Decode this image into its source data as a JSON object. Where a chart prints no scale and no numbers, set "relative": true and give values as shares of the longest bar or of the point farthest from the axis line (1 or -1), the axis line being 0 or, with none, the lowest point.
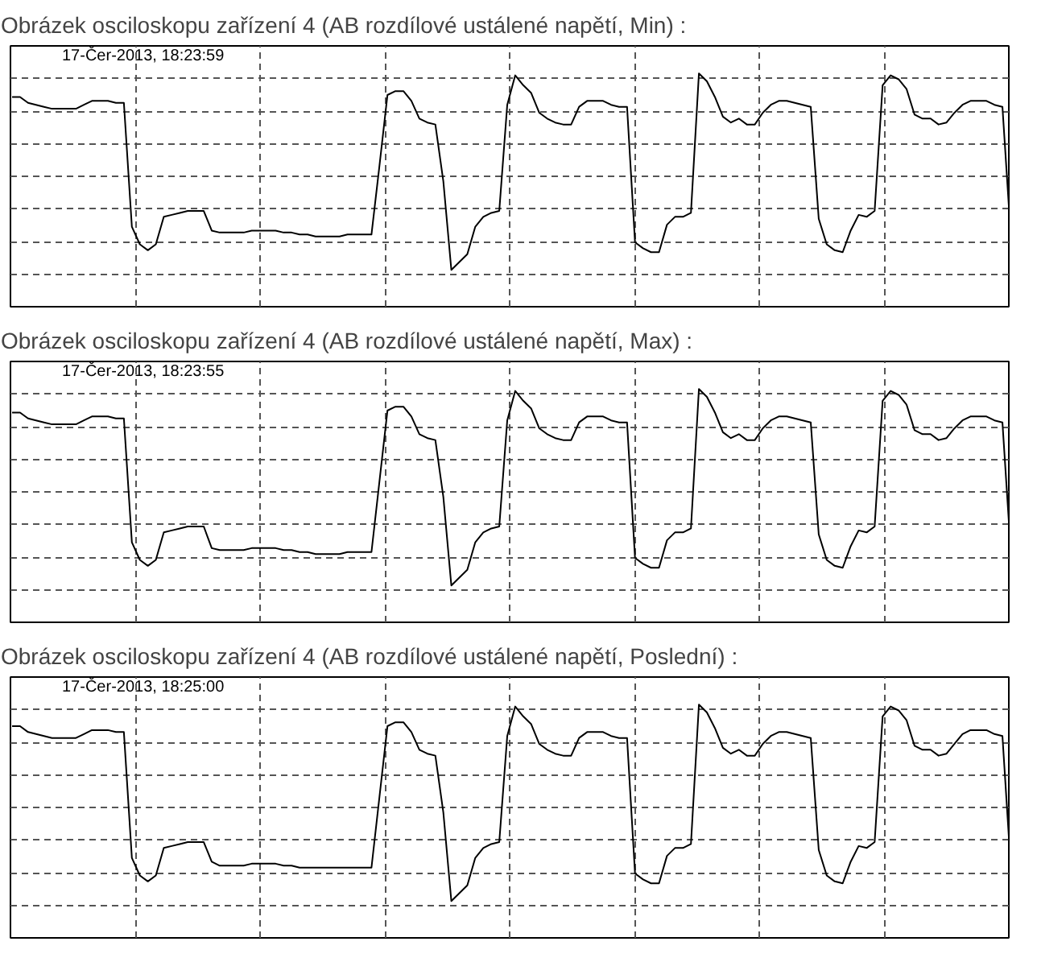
{
  "chart_data": [
    {
      "type": "line",
      "title": "Obrázek osciloskopu zařízení 4 (AB rozdílové ustálené napětí, Min) :",
      "annotations": [
        "17-Čer-2013, 18:23:59"
      ],
      "relative": true,
      "grid": true,
      "categories": [
        null,
        null,
        null,
        null,
        null,
        null,
        null,
        null,
        null,
        null,
        null,
        null,
        null,
        null,
        null,
        null,
        null,
        null,
        null,
        null,
        null,
        null,
        null,
        null,
        null,
        null,
        null,
        null,
        null,
        null,
        null,
        null,
        null,
        null,
        null,
        null,
        null,
        null,
        null,
        null,
        null,
        null,
        null,
        null,
        null,
        null,
        null,
        null,
        null,
        null,
        null,
        null,
        null,
        null,
        null,
        null,
        null,
        null,
        null,
        null,
        null,
        null,
        null,
        null,
        null,
        null,
        null,
        null,
        null,
        null,
        null,
        null,
        null,
        null,
        null,
        null,
        null,
        null,
        null,
        null,
        null,
        null,
        null,
        null,
        null,
        null,
        null,
        null,
        null,
        null,
        null,
        null,
        null,
        null,
        null,
        null,
        null,
        null,
        null,
        null,
        null,
        null,
        null,
        null,
        null,
        null,
        null,
        null,
        null,
        null,
        null,
        null,
        null,
        null,
        null,
        null,
        null,
        null,
        null,
        null,
        null,
        null,
        null,
        null,
        null,
        null
      ],
      "series": [
        {
          "color": "#000000",
          "values": [
            0.88,
            0.88,
            0.85,
            0.84,
            0.83,
            0.82,
            0.82,
            0.82,
            0.82,
            0.84,
            0.86,
            0.86,
            0.86,
            0.85,
            0.85,
            0.22,
            0.13,
            0.1,
            0.13,
            0.27,
            0.28,
            0.29,
            0.3,
            0.3,
            0.3,
            0.2,
            0.19,
            0.19,
            0.19,
            0.19,
            0.2,
            0.2,
            0.2,
            0.2,
            0.19,
            0.19,
            0.18,
            0.18,
            0.17,
            0.17,
            0.17,
            0.17,
            0.18,
            0.18,
            0.18,
            0.18,
            0.53,
            0.89,
            0.91,
            0.91,
            0.86,
            0.77,
            0.75,
            0.74,
            0.45,
            0,
            0.04,
            0.08,
            0.22,
            0.27,
            0.29,
            0.3,
            0.84,
            0.99,
            0.94,
            0.9,
            0.8,
            0.77,
            0.75,
            0.74,
            0.74,
            0.83,
            0.86,
            0.86,
            0.86,
            0.84,
            0.83,
            0.83,
            0.14,
            0.11,
            0.09,
            0.09,
            0.23,
            0.27,
            0.27,
            0.29,
            1,
            0.96,
            0.88,
            0.78,
            0.75,
            0.77,
            0.74,
            0.74,
            0.8,
            0.84,
            0.86,
            0.86,
            0.85,
            0.84,
            0.83,
            0.26,
            0.13,
            0.1,
            0.09,
            0.2,
            0.28,
            0.27,
            0.3,
            0.94,
            0.99,
            0.97,
            0.92,
            0.79,
            0.77,
            0.77,
            0.74,
            0.75,
            0.8,
            0.84,
            0.86,
            0.86,
            0.86,
            0.84,
            0.83,
            0.2
          ]
        }
      ]
    },
    {
      "type": "line",
      "title": "Obrázek osciloskopu zařízení 4 (AB rozdílové ustálené napětí, Max) :",
      "annotations": [
        "17-Čer-2013, 18:23:55"
      ],
      "relative": true,
      "grid": true,
      "categories": [
        null,
        null,
        null,
        null,
        null,
        null,
        null,
        null,
        null,
        null,
        null,
        null,
        null,
        null,
        null,
        null,
        null,
        null,
        null,
        null,
        null,
        null,
        null,
        null,
        null,
        null,
        null,
        null,
        null,
        null,
        null,
        null,
        null,
        null,
        null,
        null,
        null,
        null,
        null,
        null,
        null,
        null,
        null,
        null,
        null,
        null,
        null,
        null,
        null,
        null,
        null,
        null,
        null,
        null,
        null,
        null,
        null,
        null,
        null,
        null,
        null,
        null,
        null,
        null,
        null,
        null,
        null,
        null,
        null,
        null,
        null,
        null,
        null,
        null,
        null,
        null,
        null,
        null,
        null,
        null,
        null,
        null,
        null,
        null,
        null,
        null,
        null,
        null,
        null,
        null,
        null,
        null,
        null,
        null,
        null,
        null,
        null,
        null,
        null,
        null,
        null,
        null,
        null,
        null,
        null,
        null,
        null,
        null,
        null,
        null,
        null,
        null,
        null,
        null,
        null,
        null,
        null,
        null,
        null,
        null,
        null,
        null,
        null,
        null,
        null,
        null
      ],
      "series": [
        {
          "color": "#000000",
          "values": [
            0.88,
            0.88,
            0.85,
            0.84,
            0.83,
            0.82,
            0.82,
            0.82,
            0.82,
            0.84,
            0.86,
            0.86,
            0.86,
            0.85,
            0.85,
            0.22,
            0.13,
            0.1,
            0.13,
            0.27,
            0.28,
            0.29,
            0.3,
            0.3,
            0.3,
            0.19,
            0.18,
            0.18,
            0.18,
            0.18,
            0.19,
            0.19,
            0.19,
            0.19,
            0.18,
            0.18,
            0.17,
            0.17,
            0.16,
            0.16,
            0.16,
            0.16,
            0.17,
            0.17,
            0.17,
            0.17,
            0.53,
            0.89,
            0.91,
            0.91,
            0.86,
            0.77,
            0.75,
            0.74,
            0.45,
            0,
            0.04,
            0.08,
            0.22,
            0.27,
            0.29,
            0.3,
            0.84,
            0.99,
            0.94,
            0.9,
            0.8,
            0.77,
            0.75,
            0.74,
            0.74,
            0.83,
            0.86,
            0.86,
            0.86,
            0.84,
            0.83,
            0.83,
            0.14,
            0.11,
            0.09,
            0.09,
            0.23,
            0.27,
            0.27,
            0.29,
            1,
            0.96,
            0.88,
            0.78,
            0.75,
            0.77,
            0.74,
            0.74,
            0.8,
            0.84,
            0.86,
            0.86,
            0.85,
            0.84,
            0.83,
            0.26,
            0.13,
            0.1,
            0.09,
            0.2,
            0.28,
            0.27,
            0.3,
            0.94,
            0.99,
            0.97,
            0.92,
            0.79,
            0.77,
            0.77,
            0.74,
            0.75,
            0.8,
            0.84,
            0.86,
            0.86,
            0.86,
            0.84,
            0.83,
            0.2
          ]
        }
      ]
    },
    {
      "type": "line",
      "title": "Obrázek osciloskopu zařízení 4 (AB rozdílové ustálené napětí, Poslední) :",
      "annotations": [
        "17-Čer-2013, 18:25:00"
      ],
      "relative": true,
      "grid": true,
      "categories": [
        null,
        null,
        null,
        null,
        null,
        null,
        null,
        null,
        null,
        null,
        null,
        null,
        null,
        null,
        null,
        null,
        null,
        null,
        null,
        null,
        null,
        null,
        null,
        null,
        null,
        null,
        null,
        null,
        null,
        null,
        null,
        null,
        null,
        null,
        null,
        null,
        null,
        null,
        null,
        null,
        null,
        null,
        null,
        null,
        null,
        null,
        null,
        null,
        null,
        null,
        null,
        null,
        null,
        null,
        null,
        null,
        null,
        null,
        null,
        null,
        null,
        null,
        null,
        null,
        null,
        null,
        null,
        null,
        null,
        null,
        null,
        null,
        null,
        null,
        null,
        null,
        null,
        null,
        null,
        null,
        null,
        null,
        null,
        null,
        null,
        null,
        null,
        null,
        null,
        null,
        null,
        null,
        null,
        null,
        null,
        null,
        null,
        null,
        null,
        null,
        null,
        null,
        null,
        null,
        null,
        null,
        null,
        null,
        null,
        null,
        null,
        null,
        null,
        null,
        null,
        null,
        null,
        null,
        null,
        null,
        null,
        null,
        null,
        null,
        null,
        null
      ],
      "series": [
        {
          "color": "#000000",
          "values": [
            0.89,
            0.89,
            0.86,
            0.85,
            0.84,
            0.83,
            0.83,
            0.83,
            0.83,
            0.85,
            0.87,
            0.87,
            0.87,
            0.86,
            0.86,
            0.22,
            0.13,
            0.1,
            0.13,
            0.27,
            0.28,
            0.29,
            0.3,
            0.3,
            0.3,
            0.2,
            0.18,
            0.18,
            0.18,
            0.18,
            0.19,
            0.19,
            0.19,
            0.19,
            0.18,
            0.18,
            0.17,
            0.17,
            0.17,
            0.17,
            0.17,
            0.17,
            0.17,
            0.17,
            0.17,
            0.17,
            0.53,
            0.89,
            0.91,
            0.91,
            0.86,
            0.77,
            0.75,
            0.74,
            0.45,
            0,
            0.04,
            0.08,
            0.22,
            0.27,
            0.29,
            0.3,
            0.84,
            0.99,
            0.94,
            0.9,
            0.8,
            0.77,
            0.75,
            0.74,
            0.74,
            0.83,
            0.86,
            0.86,
            0.86,
            0.84,
            0.83,
            0.83,
            0.14,
            0.11,
            0.09,
            0.09,
            0.23,
            0.27,
            0.27,
            0.29,
            1,
            0.96,
            0.88,
            0.78,
            0.75,
            0.77,
            0.74,
            0.74,
            0.8,
            0.84,
            0.86,
            0.86,
            0.85,
            0.84,
            0.83,
            0.26,
            0.13,
            0.1,
            0.09,
            0.2,
            0.28,
            0.27,
            0.3,
            0.94,
            0.99,
            0.97,
            0.92,
            0.79,
            0.77,
            0.77,
            0.74,
            0.75,
            0.8,
            0.85,
            0.87,
            0.87,
            0.87,
            0.85,
            0.84,
            0.2
          ]
        }
      ]
    }
  ]
}
